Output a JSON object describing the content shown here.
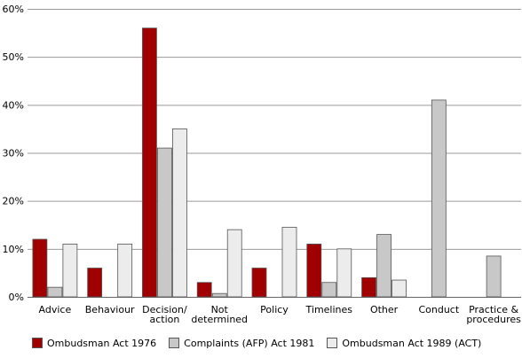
{
  "chart_data": {
    "type": "bar",
    "categories": [
      [
        "Advice"
      ],
      [
        "Behaviour"
      ],
      [
        "Decision/",
        "action"
      ],
      [
        "Not",
        "determined"
      ],
      [
        "Policy"
      ],
      [
        "Timelines"
      ],
      [
        "Other"
      ],
      [
        "Conduct"
      ],
      [
        "Practice &",
        "procedures"
      ]
    ],
    "series": [
      {
        "name": "Ombudsman Act 1976",
        "color": "#a00000",
        "values": [
          12,
          6,
          56,
          3,
          6,
          11,
          4,
          null,
          null
        ]
      },
      {
        "name": "Complaints (AFP) Act 1981",
        "color": "#c8c8c8",
        "values": [
          2,
          null,
          31,
          0.7,
          null,
          3,
          13,
          41,
          8.5
        ]
      },
      {
        "name": "Ombudsman Act 1989 (ACT)",
        "color": "#ececec",
        "values": [
          11,
          11,
          35,
          14,
          14.5,
          10,
          3.5,
          null,
          null
        ]
      }
    ],
    "ylim": [
      0,
      60
    ],
    "yticks": [
      0,
      10,
      20,
      30,
      40,
      50,
      60
    ],
    "ytick_labels": [
      "0%",
      "10%",
      "20%",
      "30%",
      "40%",
      "50%",
      "60%"
    ],
    "grid": true,
    "legend_position": "bottom-left"
  }
}
